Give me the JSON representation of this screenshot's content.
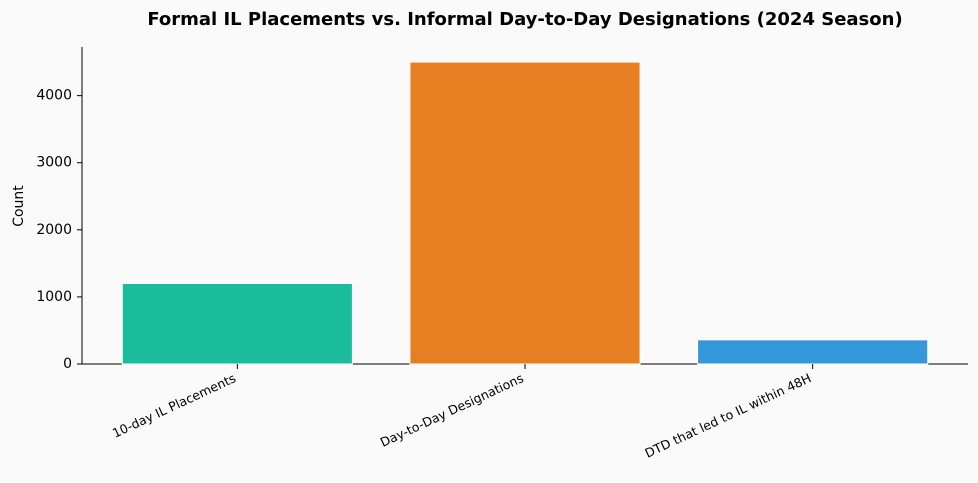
{
  "chart_data": {
    "type": "bar",
    "title": "Formal IL Placements vs. Informal Day-to-Day Designations (2024 Season)",
    "y_label": "Count",
    "categories": [
      "10-day IL Placements",
      "Day-to-Day Designations",
      "DTD that led to IL within 48H"
    ],
    "values": [
      1200,
      4500,
      360
    ],
    "colors": [
      "#1abc9c",
      "#e67e22",
      "#3498db"
    ],
    "ylim": [
      0,
      4725
    ],
    "yticks": [
      0,
      1000,
      2000,
      3000,
      4000
    ],
    "grid": false
  }
}
